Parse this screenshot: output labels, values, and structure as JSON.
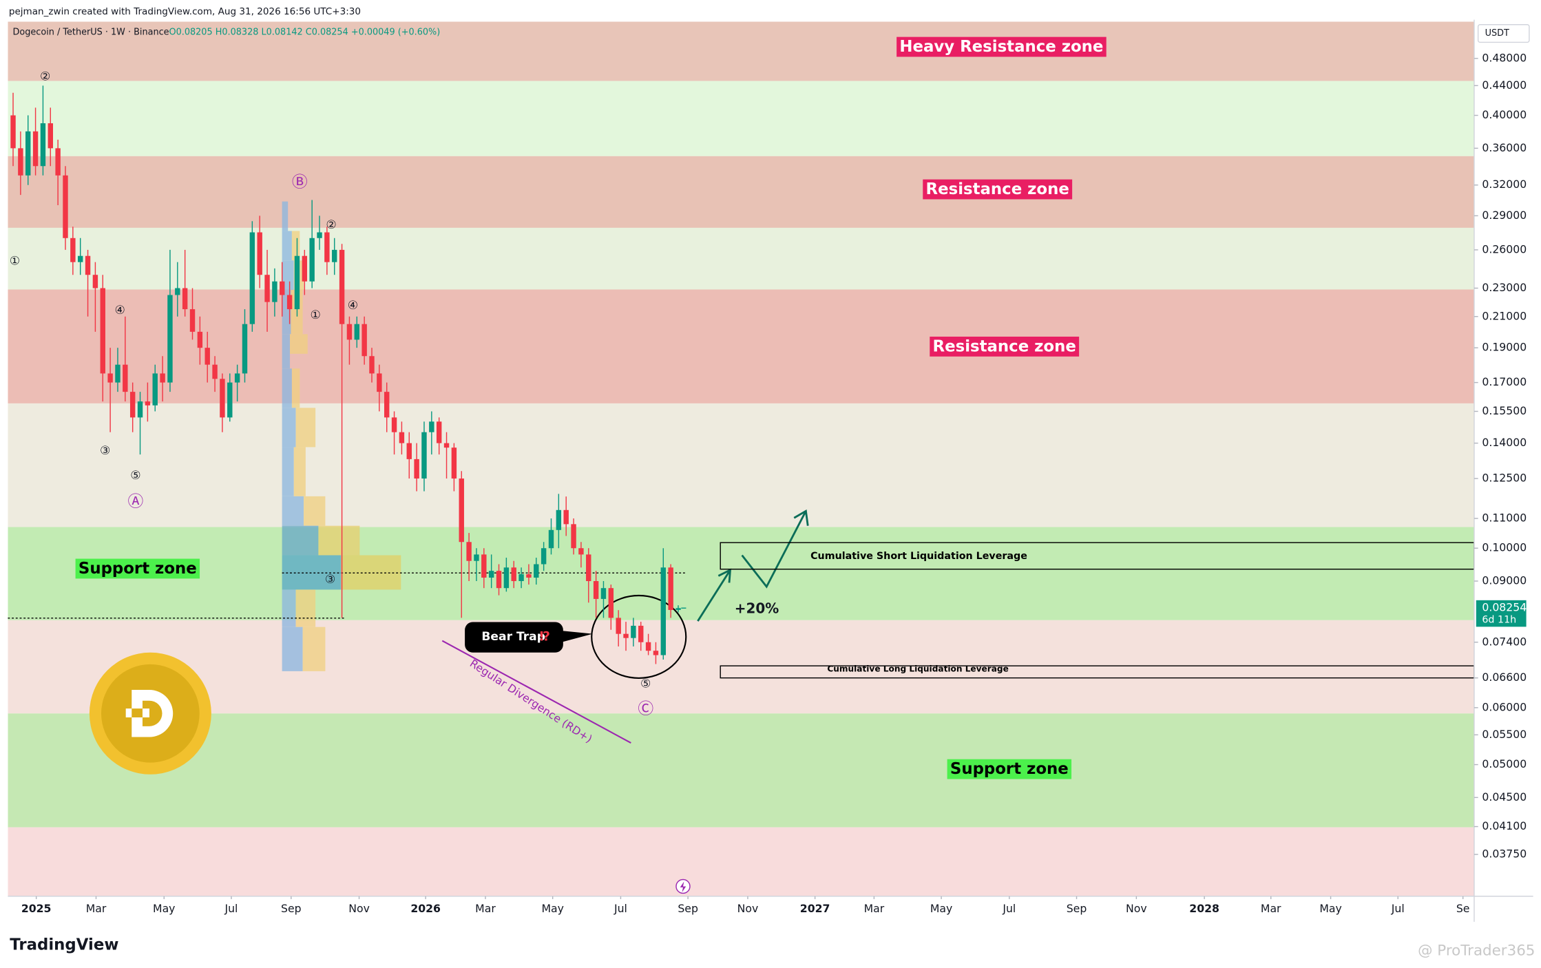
{
  "chart_data": {
    "type": "candlestick",
    "header": "pejman_zwin created with TradingView.com, Aug 31, 2026 16:56 UTC+3:30",
    "title": "Dogecoin / TetherUS · 1W · Binance",
    "ohlc_legend": "O0.08205 H0.08328 L0.08142 C0.08254 +0.00049 (+0.60%)",
    "currency": "USDT",
    "countdown": "6d 11h",
    "log_scale": true,
    "up_color": "#089981",
    "down_color": "#f23645",
    "ylim": [
      0.0328,
      0.54
    ],
    "yticks": [
      {
        "value": 0.48,
        "label": "0.48000"
      },
      {
        "value": 0.44,
        "label": "0.44000"
      },
      {
        "value": 0.4,
        "label": "0.40000"
      },
      {
        "value": 0.36,
        "label": "0.36000"
      },
      {
        "value": 0.32,
        "label": "0.32000"
      },
      {
        "value": 0.29,
        "label": "0.29000"
      },
      {
        "value": 0.26,
        "label": "0.26000"
      },
      {
        "value": 0.23,
        "label": "0.23000"
      },
      {
        "value": 0.21,
        "label": "0.21000"
      },
      {
        "value": 0.19,
        "label": "0.19000"
      },
      {
        "value": 0.17,
        "label": "0.17000"
      },
      {
        "value": 0.155,
        "label": "0.15500"
      },
      {
        "value": 0.14,
        "label": "0.14000"
      },
      {
        "value": 0.125,
        "label": "0.12500"
      },
      {
        "value": 0.11,
        "label": "0.11000"
      },
      {
        "value": 0.1,
        "label": "0.10000"
      },
      {
        "value": 0.09,
        "label": "0.09000"
      },
      {
        "value": 0.074,
        "label": "0.07400"
      },
      {
        "value": 0.066,
        "label": "0.06600"
      },
      {
        "value": 0.06,
        "label": "0.06000"
      },
      {
        "value": 0.055,
        "label": "0.05500"
      },
      {
        "value": 0.05,
        "label": "0.05000"
      },
      {
        "value": 0.045,
        "label": "0.04500"
      },
      {
        "value": 0.041,
        "label": "0.04100"
      },
      {
        "value": 0.0375,
        "label": "0.03750"
      }
    ],
    "xlim": [
      -0.7,
      195.5
    ],
    "xticks": [
      {
        "value": 3.1,
        "label": "2025"
      },
      {
        "value": 11.1,
        "label": "Mar"
      },
      {
        "value": 20.2,
        "label": "May"
      },
      {
        "value": 29.2,
        "label": "Jul"
      },
      {
        "value": 37.2,
        "label": "Sep"
      },
      {
        "value": 46.3,
        "label": "Nov"
      },
      {
        "value": 55.2,
        "label": "2026"
      },
      {
        "value": 63.2,
        "label": "Mar"
      },
      {
        "value": 72.2,
        "label": "May"
      },
      {
        "value": 81.3,
        "label": "Jul"
      },
      {
        "value": 90.3,
        "label": "Sep"
      },
      {
        "value": 98.3,
        "label": "Nov"
      },
      {
        "value": 107.3,
        "label": "2027"
      },
      {
        "value": 115.2,
        "label": "Mar"
      },
      {
        "value": 124.2,
        "label": "May"
      },
      {
        "value": 133.3,
        "label": "Jul"
      },
      {
        "value": 142.3,
        "label": "Sep"
      },
      {
        "value": 150.3,
        "label": "Nov"
      },
      {
        "value": 159.4,
        "label": "2028"
      },
      {
        "value": 168.3,
        "label": "Mar"
      },
      {
        "value": 176.3,
        "label": "May"
      },
      {
        "value": 185.3,
        "label": "Jul"
      },
      {
        "value": 194,
        "label": "Se"
      }
    ],
    "ohlc": [
      [
        0.4,
        0.43,
        0.34,
        0.36
      ],
      [
        0.36,
        0.38,
        0.31,
        0.33
      ],
      [
        0.33,
        0.4,
        0.32,
        0.38
      ],
      [
        0.38,
        0.41,
        0.33,
        0.34
      ],
      [
        0.34,
        0.44,
        0.33,
        0.39
      ],
      [
        0.39,
        0.41,
        0.34,
        0.36
      ],
      [
        0.36,
        0.37,
        0.3,
        0.33
      ],
      [
        0.33,
        0.34,
        0.26,
        0.27
      ],
      [
        0.27,
        0.28,
        0.24,
        0.25
      ],
      [
        0.25,
        0.27,
        0.24,
        0.255
      ],
      [
        0.255,
        0.26,
        0.21,
        0.24
      ],
      [
        0.24,
        0.25,
        0.2,
        0.23
      ],
      [
        0.23,
        0.24,
        0.16,
        0.175
      ],
      [
        0.175,
        0.19,
        0.145,
        0.17
      ],
      [
        0.17,
        0.19,
        0.165,
        0.18
      ],
      [
        0.18,
        0.21,
        0.16,
        0.165
      ],
      [
        0.165,
        0.17,
        0.145,
        0.152
      ],
      [
        0.152,
        0.165,
        0.135,
        0.16
      ],
      [
        0.16,
        0.17,
        0.15,
        0.158
      ],
      [
        0.158,
        0.18,
        0.155,
        0.175
      ],
      [
        0.175,
        0.185,
        0.16,
        0.17
      ],
      [
        0.17,
        0.26,
        0.165,
        0.225
      ],
      [
        0.225,
        0.25,
        0.21,
        0.23
      ],
      [
        0.23,
        0.26,
        0.21,
        0.215
      ],
      [
        0.215,
        0.23,
        0.195,
        0.2
      ],
      [
        0.2,
        0.21,
        0.18,
        0.19
      ],
      [
        0.19,
        0.2,
        0.17,
        0.18
      ],
      [
        0.18,
        0.185,
        0.165,
        0.172
      ],
      [
        0.172,
        0.175,
        0.145,
        0.152
      ],
      [
        0.152,
        0.175,
        0.15,
        0.17
      ],
      [
        0.17,
        0.18,
        0.16,
        0.175
      ],
      [
        0.175,
        0.215,
        0.17,
        0.205
      ],
      [
        0.205,
        0.285,
        0.2,
        0.275
      ],
      [
        0.275,
        0.29,
        0.23,
        0.24
      ],
      [
        0.24,
        0.26,
        0.2,
        0.22
      ],
      [
        0.22,
        0.245,
        0.21,
        0.235
      ],
      [
        0.235,
        0.25,
        0.21,
        0.225
      ],
      [
        0.225,
        0.235,
        0.205,
        0.215
      ],
      [
        0.215,
        0.27,
        0.21,
        0.255
      ],
      [
        0.255,
        0.26,
        0.225,
        0.235
      ],
      [
        0.235,
        0.305,
        0.23,
        0.27
      ],
      [
        0.27,
        0.29,
        0.26,
        0.275
      ],
      [
        0.275,
        0.28,
        0.24,
        0.25
      ],
      [
        0.25,
        0.27,
        0.24,
        0.26
      ],
      [
        0.26,
        0.265,
        0.08,
        0.205
      ],
      [
        0.205,
        0.21,
        0.18,
        0.195
      ],
      [
        0.195,
        0.21,
        0.19,
        0.205
      ],
      [
        0.205,
        0.21,
        0.18,
        0.185
      ],
      [
        0.185,
        0.19,
        0.17,
        0.175
      ],
      [
        0.175,
        0.18,
        0.155,
        0.165
      ],
      [
        0.165,
        0.17,
        0.145,
        0.152
      ],
      [
        0.152,
        0.155,
        0.135,
        0.145
      ],
      [
        0.145,
        0.15,
        0.135,
        0.14
      ],
      [
        0.14,
        0.145,
        0.125,
        0.133
      ],
      [
        0.133,
        0.14,
        0.12,
        0.125
      ],
      [
        0.125,
        0.15,
        0.12,
        0.145
      ],
      [
        0.145,
        0.155,
        0.135,
        0.15
      ],
      [
        0.15,
        0.152,
        0.135,
        0.14
      ],
      [
        0.14,
        0.145,
        0.125,
        0.138
      ],
      [
        0.138,
        0.14,
        0.12,
        0.125
      ],
      [
        0.125,
        0.128,
        0.08,
        0.102
      ],
      [
        0.102,
        0.105,
        0.09,
        0.096
      ],
      [
        0.096,
        0.1,
        0.09,
        0.098
      ],
      [
        0.098,
        0.1,
        0.088,
        0.091
      ],
      [
        0.091,
        0.098,
        0.088,
        0.093
      ],
      [
        0.093,
        0.095,
        0.086,
        0.088
      ],
      [
        0.088,
        0.097,
        0.087,
        0.094
      ],
      [
        0.094,
        0.096,
        0.088,
        0.09
      ],
      [
        0.09,
        0.094,
        0.088,
        0.092
      ],
      [
        0.092,
        0.095,
        0.089,
        0.091
      ],
      [
        0.091,
        0.097,
        0.089,
        0.095
      ],
      [
        0.095,
        0.102,
        0.093,
        0.1
      ],
      [
        0.1,
        0.11,
        0.098,
        0.106
      ],
      [
        0.106,
        0.119,
        0.1,
        0.113
      ],
      [
        0.113,
        0.118,
        0.104,
        0.108
      ],
      [
        0.108,
        0.11,
        0.098,
        0.1
      ],
      [
        0.1,
        0.102,
        0.094,
        0.098
      ],
      [
        0.098,
        0.1,
        0.084,
        0.09
      ],
      [
        0.09,
        0.093,
        0.08,
        0.085
      ],
      [
        0.085,
        0.09,
        0.08,
        0.088
      ],
      [
        0.088,
        0.089,
        0.077,
        0.08
      ],
      [
        0.08,
        0.082,
        0.073,
        0.076
      ],
      [
        0.076,
        0.079,
        0.072,
        0.075
      ],
      [
        0.075,
        0.08,
        0.073,
        0.078
      ],
      [
        0.078,
        0.079,
        0.072,
        0.074
      ],
      [
        0.074,
        0.076,
        0.071,
        0.072
      ],
      [
        0.072,
        0.074,
        0.069,
        0.071
      ],
      [
        0.071,
        0.1,
        0.07,
        0.094
      ],
      [
        0.094,
        0.095,
        0.08,
        0.08205
      ],
      [
        0.08205,
        0.08328,
        0.08142,
        0.08254
      ]
    ],
    "zones": [
      {
        "label": "Heavy Resistance zone",
        "top": 0.54,
        "bottom": 0.4465,
        "color": "#e8c5b8",
        "label_color": "#e91e63",
        "label_text_color": "#ffffff"
      },
      {
        "top": 0.4465,
        "bottom": 0.351,
        "color": "#e3f7dc"
      },
      {
        "label": "Resistance zone",
        "top": 0.351,
        "bottom": 0.279,
        "color": "#e8c2b5",
        "label_color": "#e91e63",
        "label_text_color": "#ffffff"
      },
      {
        "top": 0.279,
        "bottom": 0.229,
        "color": "#e8f1dd"
      },
      {
        "label": "Resistance zone",
        "top": 0.229,
        "bottom": 0.159,
        "color": "#ecbdb5",
        "label_color": "#e91e63",
        "label_text_color": "#ffffff"
      },
      {
        "top": 0.159,
        "bottom": 0.107,
        "color": "#eeebdf"
      },
      {
        "label": "Support zone",
        "top": 0.107,
        "bottom": 0.0794,
        "color": "#c2ebb3",
        "label_color": "#4cf04c",
        "label_text_color": "#000000"
      },
      {
        "top": 0.0794,
        "bottom": 0.0589,
        "color": "#f4e1dc"
      },
      {
        "label": "Support zone",
        "top": 0.0589,
        "bottom": 0.0409,
        "color": "#c5e8b3",
        "label_color": "#4cf04c",
        "label_text_color": "#000000"
      },
      {
        "top": 0.0409,
        "bottom": 0.0328,
        "color": "#f8dcdc"
      }
    ],
    "liquidation_levels": [
      {
        "label": "Cumulative Short Liquidation Leverage",
        "top": 0.1018,
        "bottom": 0.0935
      },
      {
        "label": "Cumulative Long Liquidation Leverage",
        "top": 0.0686,
        "bottom": 0.066
      }
    ],
    "waves": [
      "②",
      "①",
      "④",
      "③",
      "⑤",
      "Ⓐ",
      "Ⓑ",
      "②",
      "①",
      "④",
      "③",
      "⑤",
      "Ⓒ"
    ],
    "bear_trap": "Bear Trap",
    "bear_trap_mark": "⁉",
    "divergence": "Regular Divergence (RD+)",
    "target": "+20%",
    "branding": "TradingView",
    "watermark": "@ ProTrader365"
  }
}
